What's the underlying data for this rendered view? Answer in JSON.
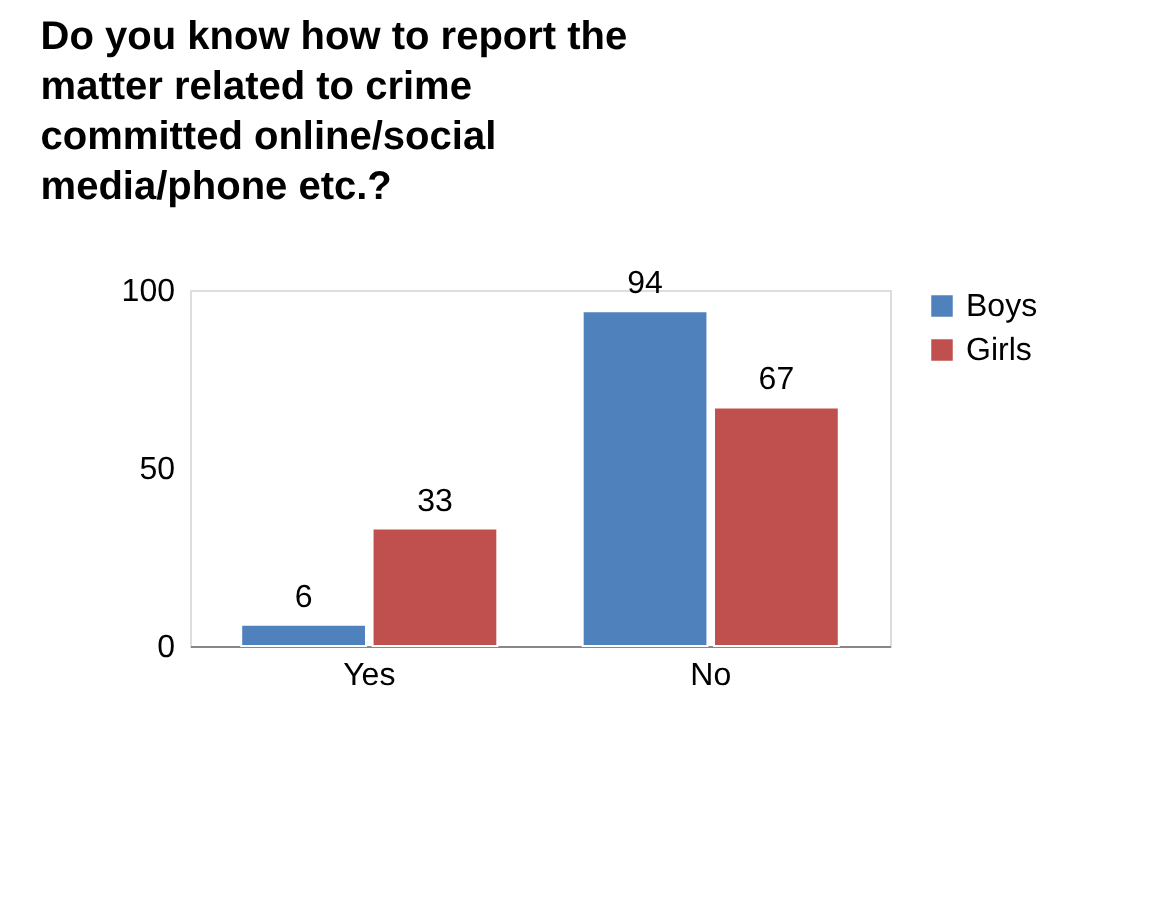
{
  "chart_data": {
    "type": "bar",
    "title": "Do you know how to report the matter related to crime committed online/social media/phone etc.?",
    "categories": [
      "Yes",
      "No"
    ],
    "series": [
      {
        "name": "Boys",
        "color": "#4f81bd",
        "values": [
          6,
          94
        ]
      },
      {
        "name": "Girls",
        "color": "#c0504d",
        "values": [
          33,
          67
        ]
      }
    ],
    "ylim": [
      0,
      100
    ],
    "yticks": [
      0,
      50,
      100
    ],
    "grid": false,
    "legend": "right",
    "data_labels": true
  }
}
